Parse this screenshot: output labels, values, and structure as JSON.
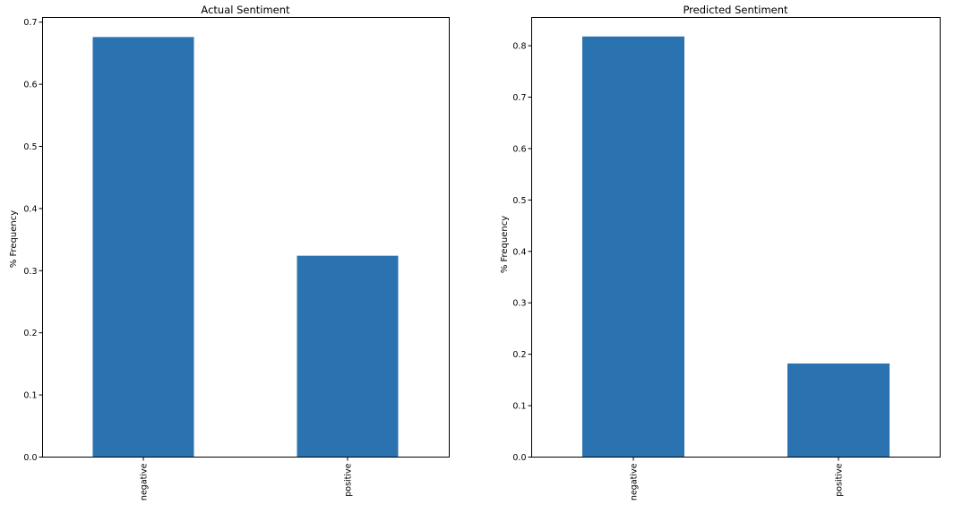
{
  "chart_data": [
    {
      "type": "bar",
      "title": "Actual  Sentiment",
      "xlabel": "",
      "ylabel": "% Frequency",
      "categories": [
        "negative",
        "positive"
      ],
      "values": [
        0.676,
        0.324
      ],
      "ylim": [
        0,
        0.7075
      ],
      "yticks": [
        0.0,
        0.1,
        0.2,
        0.3,
        0.4,
        0.5,
        0.6,
        0.7
      ],
      "ytick_labels": [
        "0.0",
        "0.1",
        "0.2",
        "0.3",
        "0.4",
        "0.5",
        "0.6",
        "0.7"
      ],
      "bar_color": "#2b72b1",
      "grid": false,
      "legend": "none"
    },
    {
      "type": "bar",
      "title": "Predicted Sentiment",
      "xlabel": "",
      "ylabel": "% Frequency",
      "categories": [
        "negative",
        "positive"
      ],
      "values": [
        0.818,
        0.182
      ],
      "ylim": [
        0,
        0.855
      ],
      "yticks": [
        0.0,
        0.1,
        0.2,
        0.3,
        0.4,
        0.5,
        0.6,
        0.7,
        0.8
      ],
      "ytick_labels": [
        "0.0",
        "0.1",
        "0.2",
        "0.3",
        "0.4",
        "0.5",
        "0.6",
        "0.7",
        "0.8"
      ],
      "bar_color": "#2b72b1",
      "grid": false,
      "legend": "none"
    }
  ]
}
